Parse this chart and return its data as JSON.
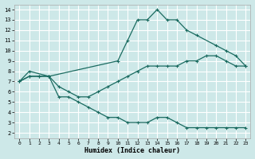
{
  "xlabel": "Humidex (Indice chaleur)",
  "bg_color": "#cde8e8",
  "line_color": "#1a6b60",
  "grid_color": "#ffffff",
  "xlim": [
    -0.5,
    23.5
  ],
  "ylim": [
    1.5,
    14.5
  ],
  "xticks": [
    0,
    1,
    2,
    3,
    4,
    5,
    6,
    7,
    8,
    9,
    10,
    11,
    12,
    13,
    14,
    15,
    16,
    17,
    18,
    19,
    20,
    21,
    22,
    23
  ],
  "yticks": [
    2,
    3,
    4,
    5,
    6,
    7,
    8,
    9,
    10,
    11,
    12,
    13,
    14
  ],
  "line1_x": [
    0,
    1,
    2,
    3,
    4,
    5,
    6,
    7,
    8,
    9,
    10,
    11,
    12,
    13,
    14,
    15,
    16,
    17,
    18,
    19,
    20,
    21,
    22,
    23
  ],
  "line1_y": [
    7,
    7.5,
    7.5,
    7.5,
    6.5,
    6,
    5.5,
    5.5,
    6,
    6.5,
    7,
    7.5,
    8,
    8.5,
    8.5,
    8.5,
    8.5,
    9,
    9,
    9.5,
    9.5,
    9,
    8.5,
    8.5
  ],
  "line2_x": [
    0,
    1,
    2,
    3,
    4,
    5,
    6,
    7,
    8,
    9,
    10,
    11,
    12,
    13,
    14,
    15,
    16,
    17,
    18,
    19,
    20,
    21,
    22,
    23
  ],
  "line2_y": [
    7,
    7.5,
    7.5,
    7.5,
    5.5,
    5.5,
    5,
    4.5,
    4,
    3.5,
    3.5,
    3,
    3,
    3,
    3.5,
    3.5,
    3,
    2.5,
    2.5,
    2.5,
    2.5,
    2.5,
    2.5,
    2.5
  ],
  "line3_x": [
    0,
    1,
    3,
    10,
    11,
    12,
    13,
    14,
    15,
    16,
    17,
    18,
    20,
    21,
    22,
    23
  ],
  "line3_y": [
    7,
    8,
    7.5,
    9,
    11,
    13,
    13,
    14,
    13,
    13,
    12,
    11.5,
    10.5,
    10,
    9.5,
    8.5
  ]
}
